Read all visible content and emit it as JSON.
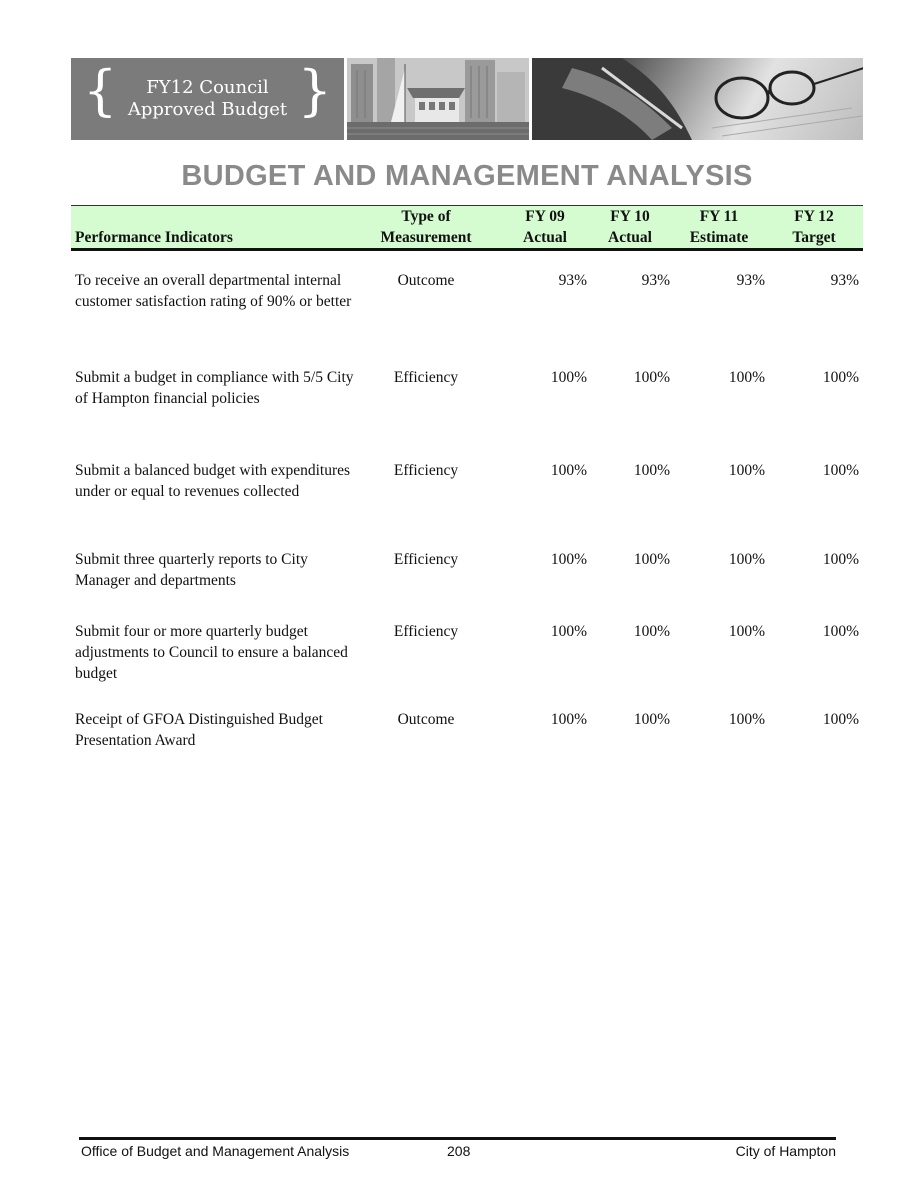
{
  "banner": {
    "line1": "FY12 Council",
    "line2": "Approved Budget",
    "brace_left": "{",
    "brace_right": "}"
  },
  "heading": "BUDGET AND MANAGEMENT ANALYSIS",
  "table": {
    "headers": {
      "indicator": "Performance Indicators",
      "type_line1": "Type of",
      "type_line2": "Measurement",
      "fy09_line1": "FY 09",
      "fy09_line2": "Actual",
      "fy10_line1": "FY 10",
      "fy10_line2": "Actual",
      "fy11_line1": "FY 11",
      "fy11_line2": "Estimate",
      "fy12_line1": "FY 12",
      "fy12_line2": "Target"
    },
    "rows": [
      {
        "indicator": "To receive an overall departmental internal customer satisfaction rating of 90% or better",
        "type": "Outcome",
        "fy09": "93%",
        "fy10": "93%",
        "fy11": "93%",
        "fy12": "93%"
      },
      {
        "indicator": "Submit a budget in compliance with 5/5 City of Hampton financial policies",
        "type": "Efficiency",
        "fy09": "100%",
        "fy10": "100%",
        "fy11": "100%",
        "fy12": "100%"
      },
      {
        "indicator": "Submit a balanced budget with expenditures under or equal to revenues collected",
        "type": "Efficiency",
        "fy09": "100%",
        "fy10": "100%",
        "fy11": "100%",
        "fy12": "100%"
      },
      {
        "indicator": "Submit three quarterly reports to City Manager and departments",
        "type": "Efficiency",
        "fy09": "100%",
        "fy10": "100%",
        "fy11": "100%",
        "fy12": "100%"
      },
      {
        "indicator": "Submit four or more quarterly budget adjustments to Council to ensure a balanced budget",
        "type": "Efficiency",
        "fy09": "100%",
        "fy10": "100%",
        "fy11": "100%",
        "fy12": "100%"
      },
      {
        "indicator": "Receipt of GFOA Distinguished Budget Presentation Award",
        "type": "Outcome",
        "fy09": "100%",
        "fy10": "100%",
        "fy11": "100%",
        "fy12": "100%"
      }
    ]
  },
  "footer": {
    "left": "Office of Budget and Management Analysis",
    "page": "208",
    "right": "City of Hampton"
  },
  "colors": {
    "header_fill": "#d5fbd0",
    "heading_text": "#8a8a8a",
    "banner_gray": "#7b7b7b"
  }
}
